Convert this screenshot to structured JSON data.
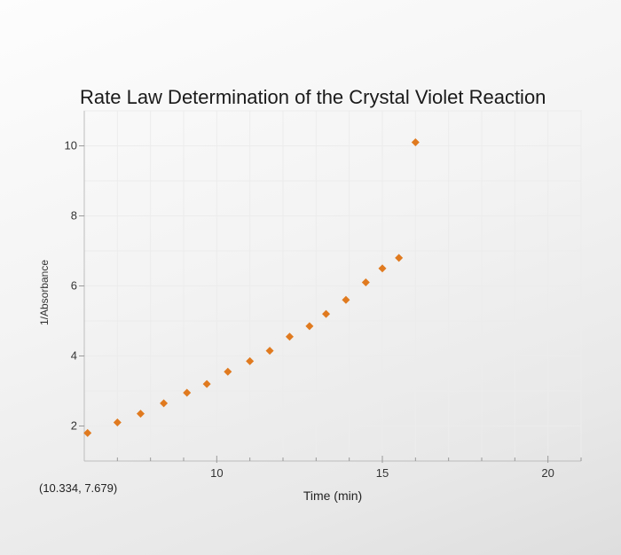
{
  "chart_data": {
    "type": "scatter",
    "title": "Rate Law Determination of the Crystal Violet Reaction",
    "xlabel": "Time (min)",
    "ylabel": "1/Absorbance",
    "xlim": [
      6.0,
      21.0
    ],
    "ylim": [
      1.0,
      11.0
    ],
    "x_ticks": [
      10,
      15,
      20
    ],
    "y_ticks": [
      2,
      4,
      6,
      8,
      10
    ],
    "grid": true,
    "marker_color": "#e07a1f",
    "series": [
      {
        "x": [
          6.1,
          7.0,
          7.7,
          8.4,
          9.1,
          9.7,
          10.334,
          11.0,
          11.6,
          12.2,
          12.8,
          13.3,
          13.9,
          14.5,
          15.0,
          15.5,
          16.0
        ],
        "y": [
          1.8,
          2.1,
          2.35,
          2.65,
          2.95,
          3.2,
          3.55,
          3.85,
          4.15,
          4.55,
          4.85,
          5.2,
          5.6,
          6.1,
          6.5,
          6.8,
          10.1
        ]
      }
    ]
  },
  "cursor_readout": "(10.334, 7.679)"
}
